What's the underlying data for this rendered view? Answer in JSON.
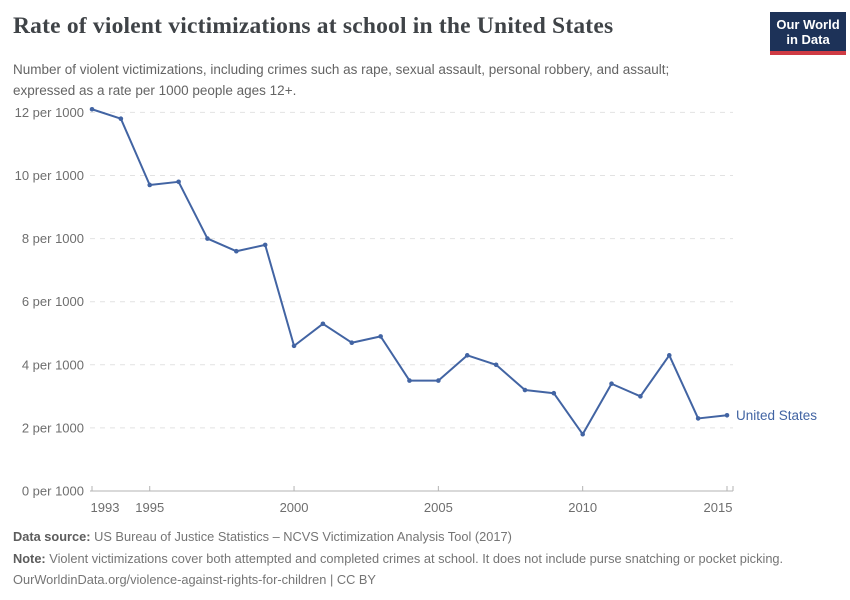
{
  "header": {
    "title": "Rate of violent victimizations at school in the United States",
    "subtitle_line1": "Number of violent victimizations, including crimes such as rape, sexual assault, personal robbery, and assault;",
    "subtitle_line2": "expressed as a rate per 1000 people ages 12+.",
    "logo": {
      "line1": "Our World",
      "line2": "in Data",
      "bg_color": "#1d3258",
      "accent_color": "#cf3b44"
    }
  },
  "chart_data": {
    "type": "line",
    "title": "Rate of violent victimizations at school in the United States",
    "subtitle": "Number of violent victimizations, including crimes such as rape, sexual assault, personal robbery, and assault; expressed as a rate per 1000 people ages 12+.",
    "xlabel": "",
    "ylabel": "",
    "xlim": [
      1993,
      2015
    ],
    "ylim": [
      0,
      12
    ],
    "grid": "horizontal-dashed",
    "legend_position": "end-of-line-label",
    "x_ticks": [
      1993,
      1995,
      2000,
      2005,
      2010,
      2015
    ],
    "y_ticks": [
      0,
      2,
      4,
      6,
      8,
      10,
      12
    ],
    "y_tick_label_suffix": " per 1000",
    "end_label": "United States",
    "series": [
      {
        "name": "United States",
        "color": "#4264a3",
        "x": [
          1993,
          1994,
          1995,
          1996,
          1997,
          1998,
          1999,
          2000,
          2001,
          2002,
          2003,
          2004,
          2005,
          2006,
          2007,
          2008,
          2009,
          2010,
          2011,
          2012,
          2013,
          2014,
          2015
        ],
        "values": [
          12.1,
          11.8,
          9.7,
          9.8,
          8.0,
          7.6,
          7.8,
          4.6,
          5.3,
          4.7,
          4.9,
          3.5,
          3.5,
          4.3,
          4.0,
          3.2,
          3.1,
          1.8,
          3.4,
          3.0,
          4.3,
          2.3,
          2.4
        ]
      }
    ]
  },
  "footer": {
    "source_label": "Data source:",
    "source_text": " US Bureau of Justice Statistics – NCVS Victimization Analysis Tool (2017)",
    "note_label": "Note:",
    "note_text": " Violent victimizations cover both attempted and completed crimes at school. It does not include purse snatching or pocket picking.",
    "url_line": "OurWorldinData.org/violence-against-rights-for-children | CC BY"
  }
}
